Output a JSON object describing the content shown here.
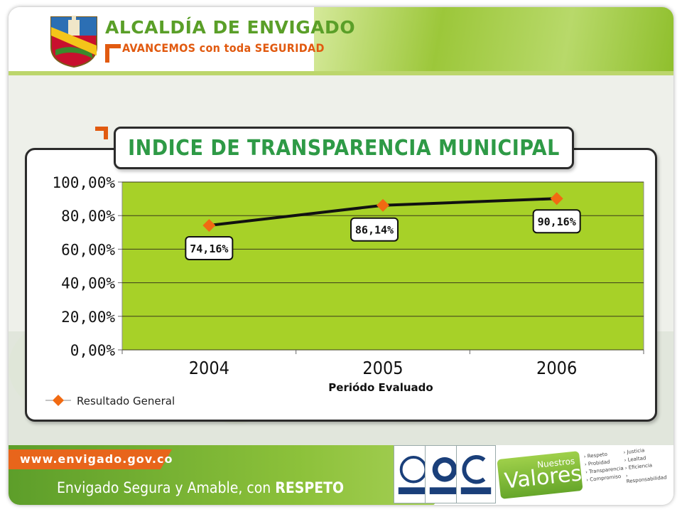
{
  "header": {
    "org_name": "ALCALDÍA DE ENVIGADO",
    "motto": "AVANCEMOS con toda SEGURIDAD"
  },
  "colors": {
    "brand_green": "#5a9f28",
    "brand_orange": "#e15a10",
    "plot_green": "#a7d128",
    "title_green": "#2e9a46",
    "marker_orange": "#f16a12"
  },
  "footer": {
    "site_url": "www.envigado.gov.co",
    "slogan_lead": "Envigado Segura y Amable, con ",
    "slogan_strong": "RESPETO",
    "values_small": "Nuestros",
    "values_big": "Valores",
    "values_list": [
      "Respeto",
      "Probidad",
      "Transparencia",
      "Compromiso",
      "Justicia",
      "Lealtad",
      "Eficiencia",
      "Responsabilidad"
    ]
  },
  "chart_data": {
    "type": "line",
    "title": "INDICE DE TRANSPARENCIA MUNICIPAL",
    "xlabel": "Periódo Evaluado",
    "ylabel": "",
    "categories": [
      "2004",
      "2005",
      "2006"
    ],
    "series": [
      {
        "name": "Resultado General",
        "values": [
          74.16,
          86.14,
          90.16
        ],
        "color": "#f16a12"
      }
    ],
    "data_labels": [
      "74,16%",
      "86,14%",
      "90,16%"
    ],
    "y_ticks": [
      "0,00%",
      "20,00%",
      "40,00%",
      "60,00%",
      "80,00%",
      "100,00%"
    ],
    "ylim": [
      0,
      100
    ],
    "grid": true,
    "legend": "bottom-left"
  }
}
